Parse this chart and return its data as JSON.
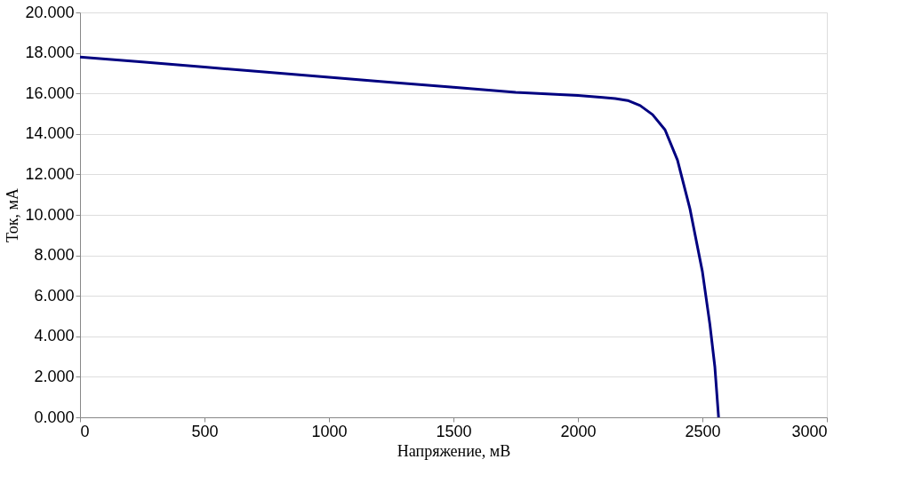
{
  "chart_data": {
    "type": "line",
    "xlabel": "Напряжение, мВ",
    "ylabel": "Ток, мА",
    "x": [
      0,
      250,
      500,
      750,
      1000,
      1250,
      1500,
      1750,
      2000,
      2100,
      2150,
      2200,
      2250,
      2300,
      2350,
      2400,
      2450,
      2500,
      2530,
      2550,
      2565
    ],
    "series": [
      {
        "color": "#000080",
        "values": [
          17.8,
          17.55,
          17.3,
          17.05,
          16.8,
          16.55,
          16.3,
          16.05,
          15.9,
          15.8,
          15.75,
          15.65,
          15.4,
          14.95,
          14.2,
          12.7,
          10.3,
          7.2,
          4.6,
          2.5,
          0.0
        ]
      }
    ],
    "xlim": [
      0,
      3000
    ],
    "xticks": [
      0,
      500,
      1000,
      1500,
      2000,
      2500,
      3000
    ],
    "ylim": [
      0,
      20
    ],
    "yticks": [
      {
        "value": 0,
        "label": "0.000"
      },
      {
        "value": 2,
        "label": "2.000"
      },
      {
        "value": 4,
        "label": "4.000"
      },
      {
        "value": 6,
        "label": "6.000"
      },
      {
        "value": 8,
        "label": "8.000"
      },
      {
        "value": 10,
        "label": "10.000"
      },
      {
        "value": 12,
        "label": "12.000"
      },
      {
        "value": 14,
        "label": "14.000"
      },
      {
        "value": 16,
        "label": "16.000"
      },
      {
        "value": 18,
        "label": "18.000"
      },
      {
        "value": 20,
        "label": "20.000"
      }
    ],
    "grid": "y",
    "legend": false,
    "marker": "none",
    "line_style": "solid"
  }
}
